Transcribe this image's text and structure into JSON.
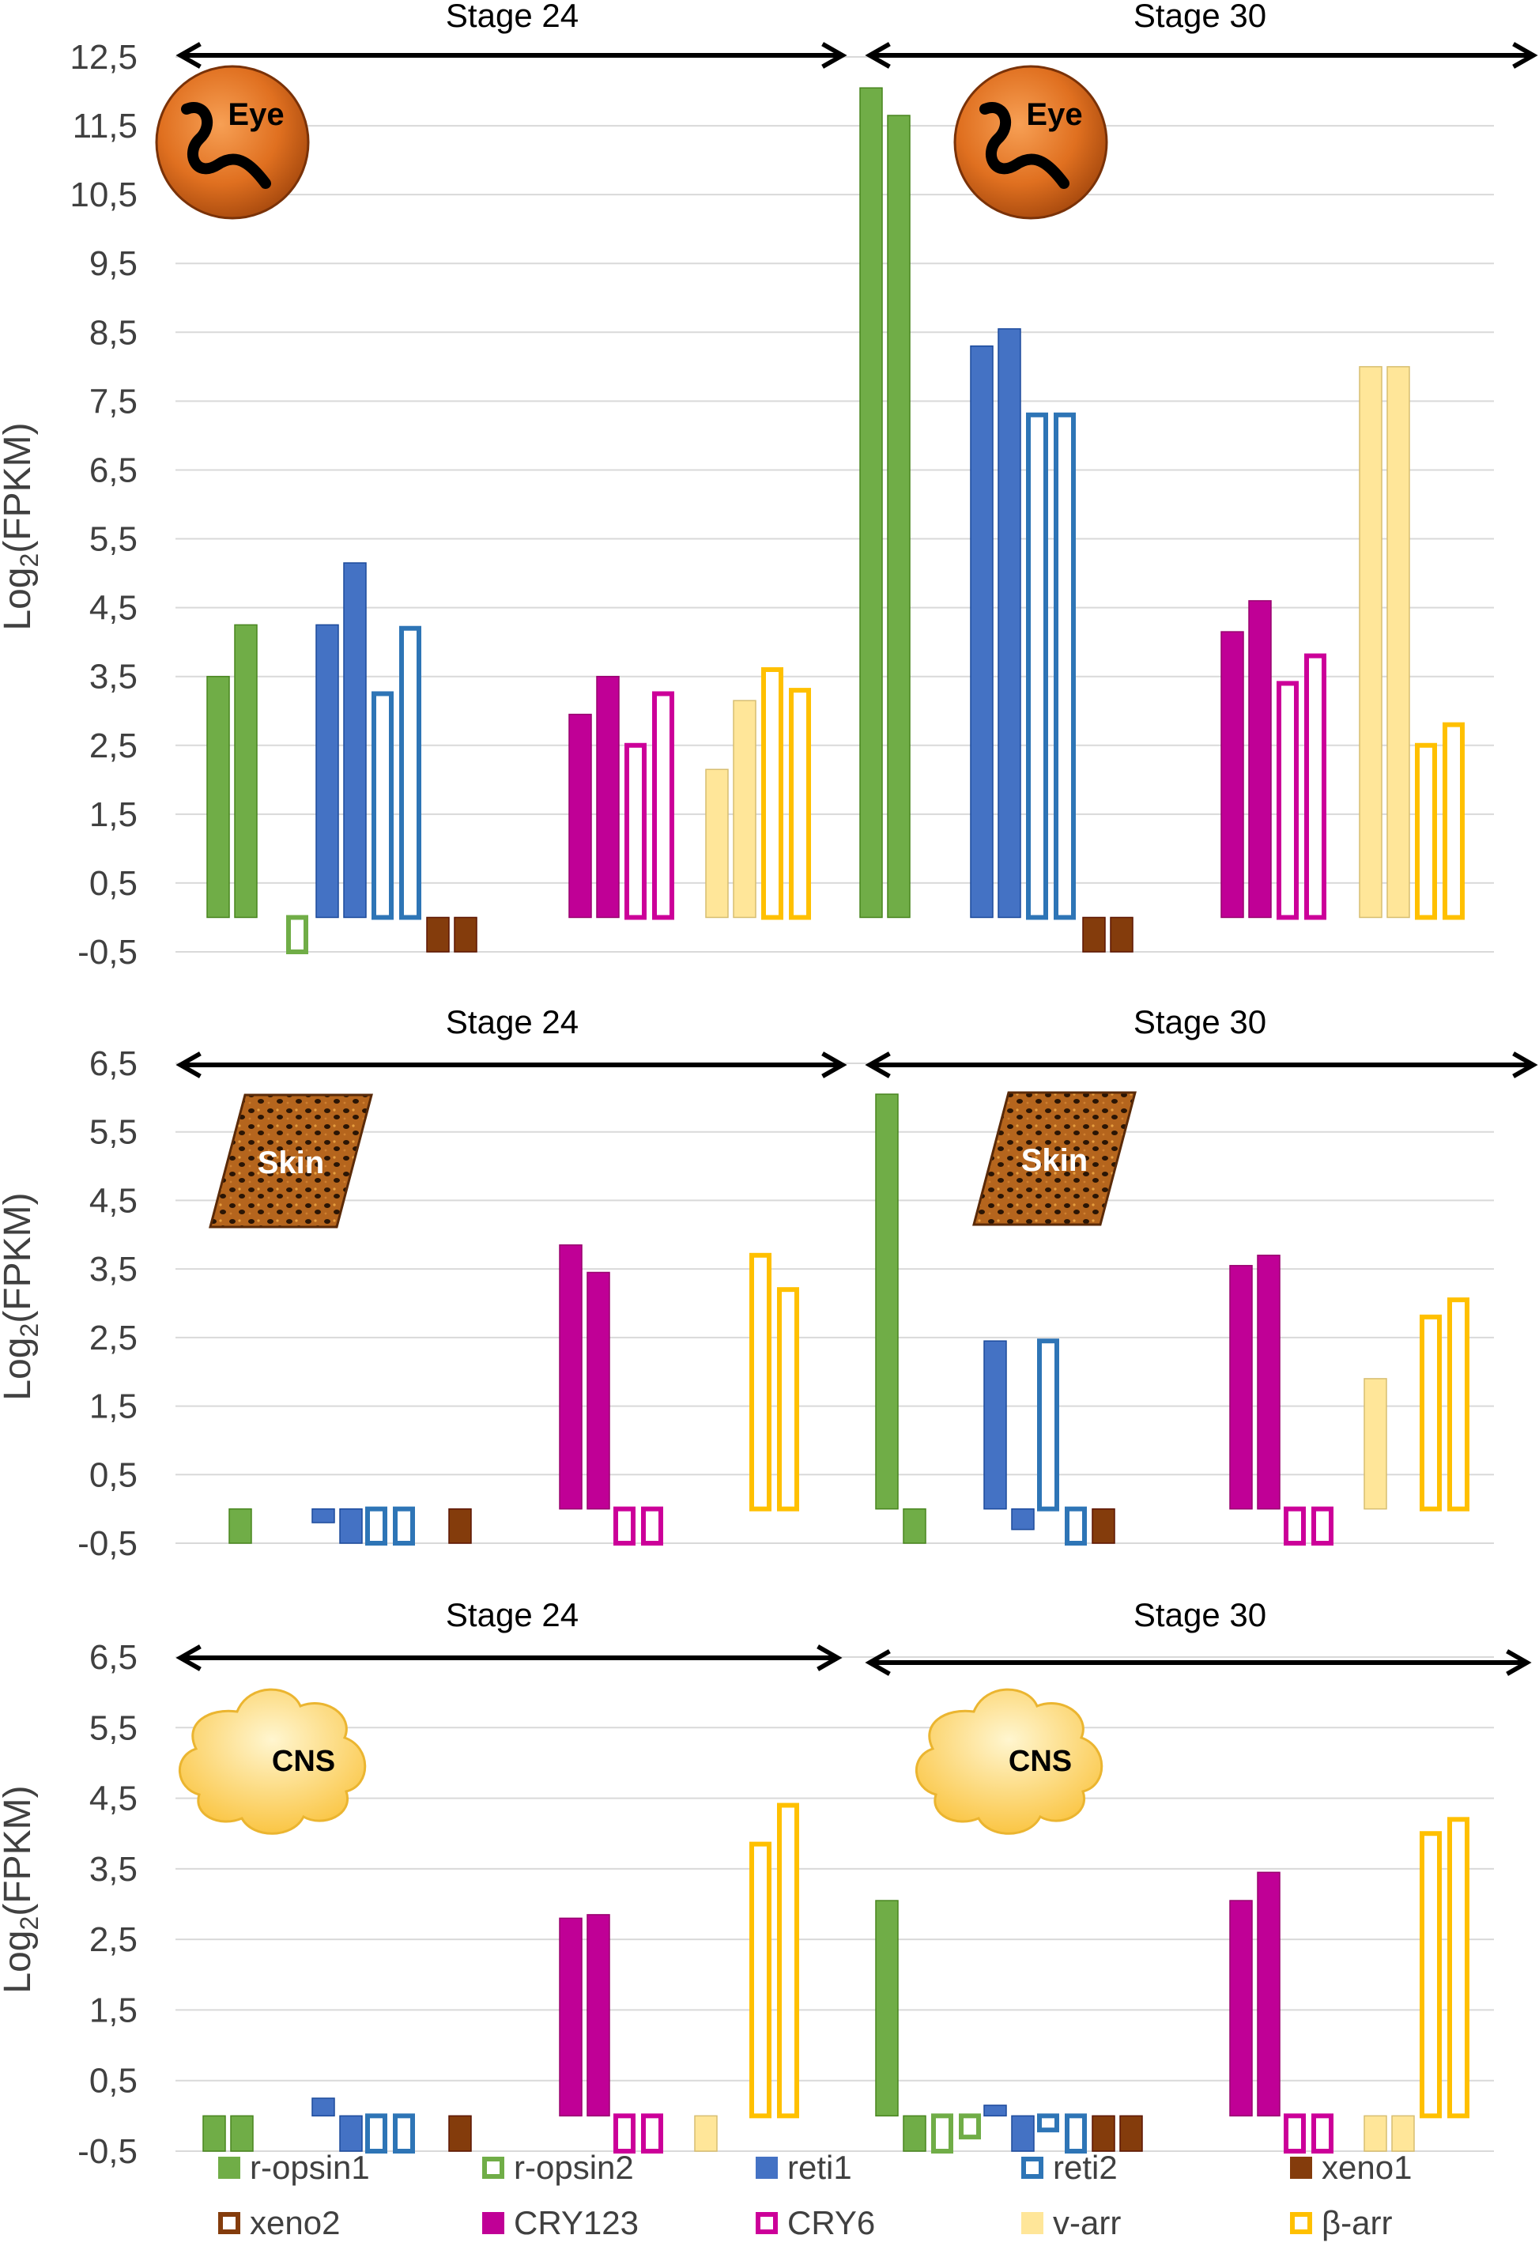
{
  "legend": [
    {
      "name": "r-opsin1",
      "color": "#70AD47",
      "fill": "solid"
    },
    {
      "name": "r-opsin2",
      "color": "#70AD47",
      "fill": "outline"
    },
    {
      "name": "reti1",
      "color": "#4472C4",
      "fill": "solid"
    },
    {
      "name": "reti2",
      "color": "#2E75B6",
      "fill": "outline"
    },
    {
      "name": "xeno1",
      "color": "#843C0C",
      "fill": "solid"
    },
    {
      "name": "xeno2",
      "color": "#843C0C",
      "fill": "outline"
    },
    {
      "name": "CRY123",
      "color": "#C00096",
      "fill": "solid"
    },
    {
      "name": "CRY6",
      "color": "#CC0099",
      "fill": "outline"
    },
    {
      "name": "v-arr",
      "color": "#FFE699",
      "fill": "solid"
    },
    {
      "name": "β-arr",
      "color": "#FFC000",
      "fill": "outline"
    }
  ],
  "chart_data": [
    {
      "type": "bar",
      "tissue": "Eye",
      "ylabel": "Log2(FPKM)",
      "ylabel_main": "Log",
      "ylabel_sub": "2",
      "ylabel_tail": "(FPKM)",
      "yticks": [
        "12,5",
        "11,5",
        "10,5",
        "9,5",
        "8,5",
        "7,5",
        "6,5",
        "5,5",
        "4,5",
        "3,5",
        "2,5",
        "1,5",
        "0,5",
        "-0,5"
      ],
      "ylim": [
        -0.5,
        12.5
      ],
      "stages": [
        {
          "label": "Stage 24",
          "bars": [
            {
              "gene": "r-opsin1",
              "values": [
                3.5,
                4.25
              ]
            },
            {
              "gene": "r-opsin2",
              "values": [
                -0.5
              ]
            },
            {
              "gene": "reti1",
              "values": [
                4.25,
                5.15
              ]
            },
            {
              "gene": "reti2",
              "values": [
                3.25,
                4.2
              ]
            },
            {
              "gene": "xeno1",
              "values": [
                -0.5,
                -0.5
              ]
            },
            {
              "gene": "CRY123",
              "values": [
                2.95,
                3.5
              ]
            },
            {
              "gene": "CRY6",
              "values": [
                2.5,
                3.25
              ]
            },
            {
              "gene": "v-arr",
              "values": [
                2.15,
                3.15
              ]
            },
            {
              "gene": "β-arr",
              "values": [
                3.6,
                3.3
              ]
            }
          ]
        },
        {
          "label": "Stage 30",
          "bars": [
            {
              "gene": "r-opsin1",
              "values": [
                12.05,
                11.65
              ]
            },
            {
              "gene": "reti1",
              "values": [
                8.3,
                8.55
              ]
            },
            {
              "gene": "reti2",
              "values": [
                7.3,
                7.3
              ]
            },
            {
              "gene": "xeno1",
              "values": [
                -0.5,
                -0.5
              ]
            },
            {
              "gene": "CRY123",
              "values": [
                4.15,
                4.6
              ]
            },
            {
              "gene": "CRY6",
              "values": [
                3.4,
                3.8
              ]
            },
            {
              "gene": "v-arr",
              "values": [
                8.0,
                8.0
              ]
            },
            {
              "gene": "β-arr",
              "values": [
                2.5,
                2.8
              ]
            }
          ]
        }
      ]
    },
    {
      "type": "bar",
      "tissue": "Skin",
      "ylabel": "Log2(FPKM)",
      "ylabel_main": "Log",
      "ylabel_sub": "2",
      "ylabel_tail": "(FPKM)",
      "yticks": [
        "6,5",
        "5,5",
        "4,5",
        "3,5",
        "2,5",
        "1,5",
        "0,5",
        "-0,5"
      ],
      "ylim": [
        -0.5,
        6.5
      ],
      "stages": [
        {
          "label": "Stage 24",
          "bars": [
            {
              "gene": "r-opsin1",
              "values": [
                -0.5
              ]
            },
            {
              "gene": "reti1",
              "values": [
                -0.2,
                -0.5
              ]
            },
            {
              "gene": "reti2",
              "values": [
                -0.5,
                -0.5
              ]
            },
            {
              "gene": "xeno1",
              "values": [
                -0.5
              ]
            },
            {
              "gene": "CRY123",
              "values": [
                3.85,
                3.45
              ]
            },
            {
              "gene": "CRY6",
              "values": [
                -0.5,
                -0.5
              ]
            },
            {
              "gene": "β-arr",
              "values": [
                3.7,
                3.2
              ]
            }
          ]
        },
        {
          "label": "Stage 30",
          "bars": [
            {
              "gene": "r-opsin1",
              "values": [
                6.05,
                -0.5
              ]
            },
            {
              "gene": "reti1",
              "values": [
                2.45,
                -0.3
              ]
            },
            {
              "gene": "reti2",
              "values": [
                2.45,
                -0.5
              ]
            },
            {
              "gene": "xeno1",
              "values": [
                -0.5
              ]
            },
            {
              "gene": "CRY123",
              "values": [
                3.55,
                3.7
              ]
            },
            {
              "gene": "CRY6",
              "values": [
                -0.5,
                -0.5
              ]
            },
            {
              "gene": "v-arr",
              "values": [
                1.9
              ]
            },
            {
              "gene": "β-arr",
              "values": [
                2.8,
                3.05
              ]
            }
          ]
        }
      ]
    },
    {
      "type": "bar",
      "tissue": "CNS",
      "ylabel": "Log2(FPKM)",
      "ylabel_main": "Log",
      "ylabel_sub": "2",
      "ylabel_tail": "(FPKM)",
      "yticks": [
        "6,5",
        "5,5",
        "4,5",
        "3,5",
        "2,5",
        "1,5",
        "0,5",
        "-0,5"
      ],
      "ylim": [
        -0.5,
        6.5
      ],
      "stages": [
        {
          "label": "Stage 24",
          "bars": [
            {
              "gene": "r-opsin1",
              "values": [
                -0.5,
                -0.5
              ]
            },
            {
              "gene": "reti1",
              "values": [
                0.25,
                -0.5
              ]
            },
            {
              "gene": "reti2",
              "values": [
                -0.5,
                -0.5
              ]
            },
            {
              "gene": "xeno1",
              "values": [
                -0.5
              ]
            },
            {
              "gene": "CRY123",
              "values": [
                2.8,
                2.85
              ]
            },
            {
              "gene": "CRY6",
              "values": [
                -0.5,
                -0.5
              ]
            },
            {
              "gene": "v-arr",
              "values": [
                -0.5
              ]
            },
            {
              "gene": "β-arr",
              "values": [
                3.85,
                4.4
              ]
            }
          ]
        },
        {
          "label": "Stage 30",
          "bars": [
            {
              "gene": "r-opsin1",
              "values": [
                3.05,
                -0.5
              ]
            },
            {
              "gene": "r-opsin2",
              "values": [
                -0.5,
                -0.3
              ]
            },
            {
              "gene": "reti1",
              "values": [
                0.15,
                -0.5
              ]
            },
            {
              "gene": "reti2",
              "values": [
                -0.2,
                -0.5
              ]
            },
            {
              "gene": "xeno1",
              "values": [
                -0.5,
                -0.5
              ]
            },
            {
              "gene": "CRY123",
              "values": [
                3.05,
                3.45
              ]
            },
            {
              "gene": "CRY6",
              "values": [
                -0.5,
                -0.5
              ]
            },
            {
              "gene": "v-arr",
              "values": [
                -0.5,
                -0.5
              ]
            },
            {
              "gene": "β-arr",
              "values": [
                4.0,
                4.2
              ]
            }
          ]
        }
      ]
    }
  ]
}
